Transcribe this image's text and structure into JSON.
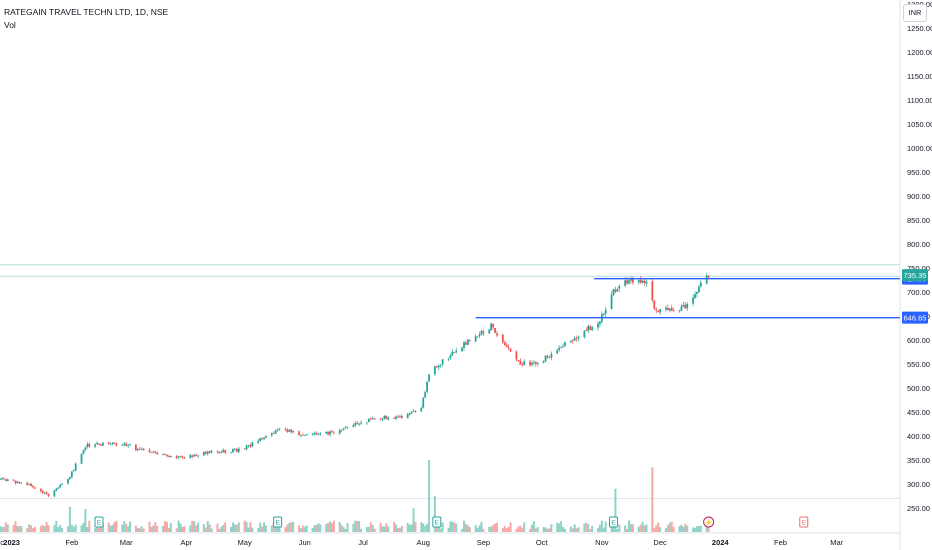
{
  "header": {
    "title": "RATEGAIN TRAVEL TECHN LTD, 1D, NSE",
    "subtitle": "Vol",
    "currency": "INR"
  },
  "colors": {
    "up": "#26a69a",
    "down": "#ef5350",
    "vol_up": "#8fd3c8",
    "vol_down": "#f7a9a7",
    "level_line": "#2962ff",
    "last_price_tag": "#26a69a",
    "level_tag": "#2962ff",
    "dividend_event": "#c2185b"
  },
  "chart_data": {
    "type": "candlestick",
    "symbol": "RATEGAIN TRAVEL TECHN LTD",
    "interval": "1D",
    "exchange": "NSE",
    "currency": "INR",
    "y_axis": {
      "min": 230,
      "max": 1300,
      "ticks": [
        250,
        300,
        350,
        400,
        450,
        500,
        550,
        600,
        650,
        700,
        750,
        800,
        850,
        900,
        950,
        1000,
        1050,
        1100,
        1150,
        1200,
        1250
      ],
      "tick_labels": [
        "250.00",
        "300.00",
        "350.00",
        "400.00",
        "450.00",
        "500.00",
        "550.00",
        "600.00",
        "650.00",
        "700.00",
        "750.00",
        "800.00",
        "850.00",
        "900.00",
        "950.00",
        "1000.00",
        "1050.00",
        "1100.00",
        "1150.00",
        "1200.00",
        "1250.00"
      ]
    },
    "x_axis": {
      "start": "2022-12-26",
      "end": "2024-03-31",
      "ticks": [
        {
          "date": "2022-12-26",
          "label": "ec"
        },
        {
          "date": "2023-01-01",
          "label": "2023"
        },
        {
          "date": "2023-02-01",
          "label": "Feb"
        },
        {
          "date": "2023-03-01",
          "label": "Mar"
        },
        {
          "date": "2023-04-01",
          "label": "Apr"
        },
        {
          "date": "2023-05-01",
          "label": "May"
        },
        {
          "date": "2023-06-01",
          "label": "Jun"
        },
        {
          "date": "2023-07-01",
          "label": "Jul"
        },
        {
          "date": "2023-08-01",
          "label": "Aug"
        },
        {
          "date": "2023-09-01",
          "label": "Sep"
        },
        {
          "date": "2023-10-01",
          "label": "Oct"
        },
        {
          "date": "2023-11-01",
          "label": "Nov"
        },
        {
          "date": "2023-12-01",
          "label": "Dec"
        },
        {
          "date": "2024-01-01",
          "label": "2024"
        },
        {
          "date": "2024-02-01",
          "label": "Feb"
        },
        {
          "date": "2024-03-01",
          "label": "Mar"
        }
      ]
    },
    "price_path": [
      [
        "2022-12-26",
        310
      ],
      [
        "2023-01-10",
        300
      ],
      [
        "2023-01-20",
        275
      ],
      [
        "2023-01-31",
        315
      ],
      [
        "2023-02-08",
        380
      ],
      [
        "2023-02-15",
        382
      ],
      [
        "2023-02-28",
        385
      ],
      [
        "2023-03-08",
        370
      ],
      [
        "2023-03-20",
        362
      ],
      [
        "2023-03-31",
        355
      ],
      [
        "2023-04-10",
        365
      ],
      [
        "2023-04-20",
        368
      ],
      [
        "2023-04-30",
        372
      ],
      [
        "2023-05-10",
        395
      ],
      [
        "2023-05-20",
        415
      ],
      [
        "2023-05-31",
        400
      ],
      [
        "2023-06-10",
        405
      ],
      [
        "2023-06-20",
        412
      ],
      [
        "2023-06-30",
        430
      ],
      [
        "2023-07-10",
        438
      ],
      [
        "2023-07-20",
        440
      ],
      [
        "2023-07-31",
        460
      ],
      [
        "2023-08-04",
        530
      ],
      [
        "2023-08-15",
        570
      ],
      [
        "2023-08-25",
        600
      ],
      [
        "2023-09-05",
        630
      ],
      [
        "2023-09-12",
        590
      ],
      [
        "2023-09-20",
        550
      ],
      [
        "2023-09-30",
        555
      ],
      [
        "2023-10-10",
        585
      ],
      [
        "2023-10-20",
        610
      ],
      [
        "2023-10-31",
        640
      ],
      [
        "2023-11-07",
        700
      ],
      [
        "2023-11-15",
        725
      ],
      [
        "2023-11-24",
        715
      ],
      [
        "2023-11-28",
        665
      ],
      [
        "2023-12-08",
        660
      ],
      [
        "2023-12-15",
        672
      ],
      [
        "2023-12-20",
        705
      ],
      [
        "2023-12-26",
        735.35
      ]
    ],
    "volume_spikes": [
      {
        "date": "2023-08-04",
        "level": 1.0,
        "dir": "up"
      },
      {
        "date": "2023-08-07",
        "level": 0.5,
        "dir": "up"
      },
      {
        "date": "2023-11-08",
        "level": 0.6,
        "dir": "up"
      },
      {
        "date": "2023-11-27",
        "level": 0.9,
        "dir": "down"
      },
      {
        "date": "2023-02-08",
        "level": 0.32,
        "dir": "up"
      },
      {
        "date": "2023-01-31",
        "level": 0.35,
        "dir": "up"
      },
      {
        "date": "2023-07-27",
        "level": 0.33,
        "dir": "up"
      }
    ],
    "levels": [
      {
        "value": 727.95,
        "label": "727.95",
        "start": "2023-10-28"
      },
      {
        "value": 646.65,
        "label": "646.65",
        "start": "2023-08-28"
      }
    ],
    "last_price": {
      "value": 735.35,
      "label": "735.35"
    },
    "events": [
      {
        "date": "2023-02-15",
        "symbol": "E",
        "kind": "earnings"
      },
      {
        "date": "2023-05-18",
        "symbol": "E",
        "kind": "earnings"
      },
      {
        "date": "2023-08-08",
        "symbol": "E",
        "kind": "earnings"
      },
      {
        "date": "2023-11-07",
        "symbol": "E",
        "kind": "earnings"
      },
      {
        "date": "2023-12-26",
        "symbol": "⚡",
        "kind": "dividend"
      },
      {
        "date": "2024-02-13",
        "symbol": "E",
        "kind": "earnings-upcoming"
      }
    ]
  }
}
